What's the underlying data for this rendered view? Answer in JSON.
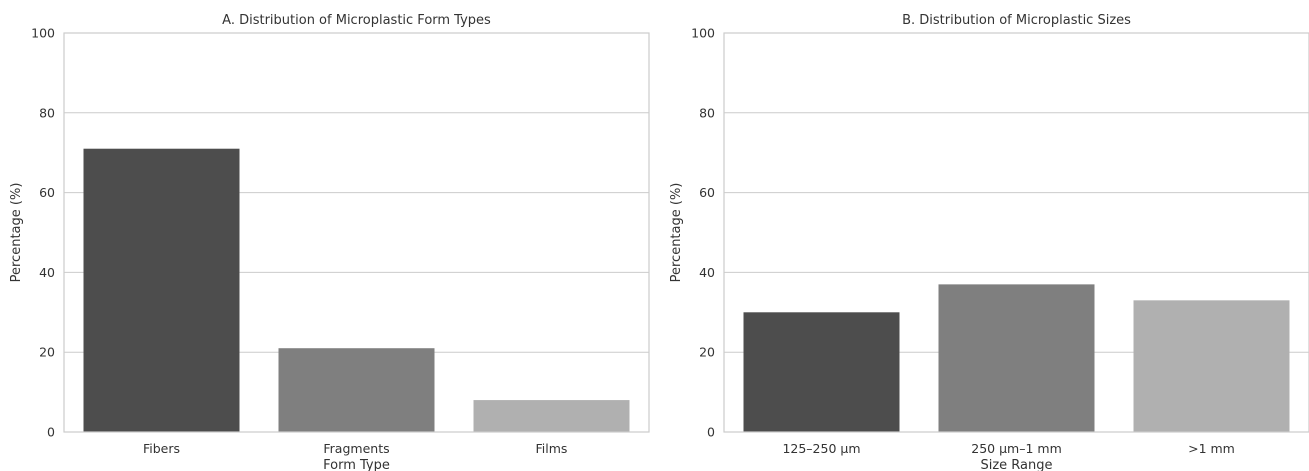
{
  "chart_data": [
    {
      "type": "bar",
      "title": "A. Distribution of Microplastic Form Types",
      "xlabel": "Form Type",
      "ylabel": "Percentage (%)",
      "categories": [
        "Fibers",
        "Fragments",
        "Films"
      ],
      "values": [
        71,
        21,
        8
      ],
      "colors": [
        "#4d4d4d",
        "#7f7f7f",
        "#b0b0b0"
      ],
      "ylim": [
        0,
        100
      ],
      "yticks": [
        0,
        20,
        40,
        60,
        80,
        100
      ],
      "grid": true
    },
    {
      "type": "bar",
      "title": "B. Distribution of Microplastic Sizes",
      "xlabel": "Size Range",
      "ylabel": "Percentage (%)",
      "categories": [
        "125–250 µm",
        "250 µm–1 mm",
        ">1 mm"
      ],
      "values": [
        30,
        37,
        33
      ],
      "colors": [
        "#4d4d4d",
        "#7f7f7f",
        "#b0b0b0"
      ],
      "ylim": [
        0,
        100
      ],
      "yticks": [
        0,
        20,
        40,
        60,
        80,
        100
      ],
      "grid": true
    }
  ]
}
